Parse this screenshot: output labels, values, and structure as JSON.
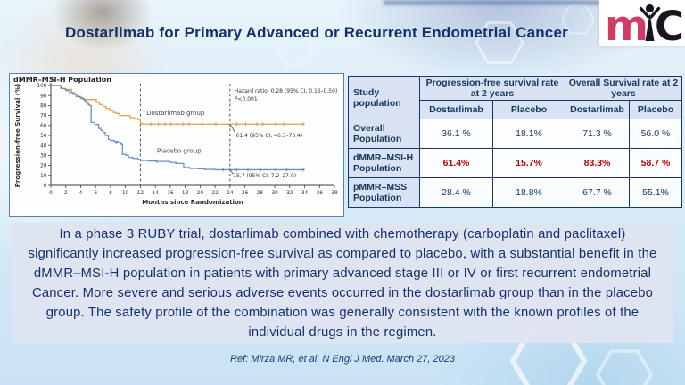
{
  "page": {
    "title": "Dostarlimab for Primary Advanced or Recurrent Endometrial Cancer",
    "reference": "Ref: Mirza MR, et al. N Engl J Med. March 27, 2023"
  },
  "logo": {
    "m": "m",
    "c": "C",
    "m_color": "#d23b63",
    "dark_color": "#16161f"
  },
  "summary": {
    "text": "In a phase 3 RUBY trial, dostarlimab combined with chemotherapy (carboplatin and paclitaxel) significantly increased progression-free survival as compared to placebo, with a substantial benefit in the dMMR–MSI-H population in patients with primary advanced stage III or IV or first recurrent endometrial Cancer. More severe and serious adverse events occurred in the dostarlimab group than in the placebo group. The safety profile of the combination was generally consistent with the known profiles of the individual drugs in the regimen."
  },
  "table": {
    "corner_header": "Study population",
    "group_headers": [
      "Progression-free survival rate at 2 years",
      "Overall Survival rate at 2 years"
    ],
    "sub_headers": [
      "Dostarlimab",
      "Placebo",
      "Dostarlimab",
      "Placebo"
    ],
    "rows": [
      {
        "label": "Overall Population",
        "values": [
          "36.1 %",
          "18.1%",
          "71.3 %",
          "56.0 %"
        ],
        "highlight": false
      },
      {
        "label": "dMMR–MSI-H Population",
        "values": [
          "61.4%",
          "15.7%",
          "83.3%",
          "58.7 %"
        ],
        "highlight": true
      },
      {
        "label": "pMMR–MSS Population",
        "values": [
          "28.4 %",
          "18.8%",
          "67.7 %",
          "55.1%"
        ],
        "highlight": false
      }
    ],
    "highlight_color": "#c00000",
    "header_bg": "#d9e2f3",
    "border_color": "#17375e"
  },
  "chart_data": {
    "type": "line",
    "subtype": "kaplan-meier-step",
    "title": "dMMR–MSI-H Population",
    "xlabel": "Months since Randomization",
    "ylabel": "Progression-free Survival (%)",
    "xlim": [
      0,
      38
    ],
    "xtick_step": 2,
    "ylim": [
      0,
      100
    ],
    "ytick_step": 10,
    "grid": false,
    "reference_lines_x": [
      12,
      24
    ],
    "series": [
      {
        "name": "Dostarlimab group",
        "color": "#e2a047",
        "label_pos": {
          "x": 12.8,
          "y": 70.5
        },
        "rate_at_24mo": 61.4,
        "points": [
          [
            0,
            100
          ],
          [
            1.3,
            100
          ],
          [
            1.3,
            97
          ],
          [
            1.9,
            96
          ],
          [
            2.8,
            93
          ],
          [
            3.2,
            91
          ],
          [
            3.6,
            89
          ],
          [
            4.0,
            87
          ],
          [
            4.3,
            86
          ],
          [
            5.9,
            86
          ],
          [
            6.1,
            83
          ],
          [
            6.5,
            81
          ],
          [
            7.0,
            79
          ],
          [
            7.4,
            77
          ],
          [
            7.9,
            75
          ],
          [
            8.4,
            73
          ],
          [
            8.8,
            72
          ],
          [
            9.2,
            70
          ],
          [
            10.4,
            70
          ],
          [
            10.6,
            68
          ],
          [
            11.2,
            67
          ],
          [
            11.7,
            66
          ],
          [
            12.0,
            62
          ],
          [
            12.3,
            61.4
          ],
          [
            34,
            61.4
          ]
        ],
        "censor_marks": [
          [
            13.4,
            61.4
          ],
          [
            14.4,
            61.4
          ],
          [
            15.3,
            61.4
          ],
          [
            16.1,
            61.4
          ],
          [
            16.9,
            61.4
          ],
          [
            17.7,
            61.4
          ],
          [
            18.5,
            61.4
          ],
          [
            20.3,
            61.4
          ],
          [
            22.1,
            61.4
          ],
          [
            24.9,
            61.4
          ],
          [
            26.1,
            61.4
          ],
          [
            27.6,
            61.4
          ],
          [
            28.4,
            61.4
          ],
          [
            30.1,
            61.4
          ],
          [
            31.2,
            61.4
          ],
          [
            33.8,
            61.4
          ]
        ]
      },
      {
        "name": "Placebo group",
        "color": "#6d8fc4",
        "label_pos": {
          "x": 14.2,
          "y": 32.5
        },
        "rate_at_24mo": 15.7,
        "points": [
          [
            0,
            100
          ],
          [
            1.4,
            100
          ],
          [
            1.4,
            97
          ],
          [
            2.0,
            95
          ],
          [
            2.5,
            93
          ],
          [
            3.0,
            91
          ],
          [
            3.4,
            89
          ],
          [
            3.9,
            88
          ],
          [
            4.2,
            87
          ],
          [
            4.5,
            85
          ],
          [
            4.7,
            83
          ],
          [
            5.0,
            81
          ],
          [
            5.2,
            80
          ],
          [
            5.4,
            63
          ],
          [
            5.9,
            61
          ],
          [
            6.4,
            57
          ],
          [
            6.7,
            55
          ],
          [
            7.0,
            53
          ],
          [
            7.3,
            50
          ],
          [
            7.7,
            46
          ],
          [
            8.0,
            45
          ],
          [
            8.5,
            44
          ],
          [
            9.0,
            43
          ],
          [
            9.4,
            41
          ],
          [
            9.6,
            31
          ],
          [
            10.1,
            30
          ],
          [
            10.4,
            28
          ],
          [
            11.0,
            27
          ],
          [
            11.7,
            26
          ],
          [
            12.0,
            25
          ],
          [
            13.0,
            24.5
          ],
          [
            14.2,
            24
          ],
          [
            16.0,
            23
          ],
          [
            16.9,
            22
          ],
          [
            17.8,
            18
          ],
          [
            18.6,
            17
          ],
          [
            19.8,
            16.5
          ],
          [
            20.6,
            16
          ],
          [
            22.0,
            15.7
          ],
          [
            34,
            15.7
          ]
        ],
        "censor_marks": [
          [
            8.8,
            43
          ],
          [
            14.2,
            24
          ],
          [
            16.9,
            22
          ],
          [
            23.1,
            15.7
          ],
          [
            24.9,
            15.7
          ],
          [
            26.4,
            15.7
          ],
          [
            28.1,
            15.7
          ],
          [
            30.1,
            15.7
          ],
          [
            31.6,
            15.7
          ],
          [
            33.8,
            15.7
          ]
        ]
      }
    ],
    "annotations": [
      {
        "text": "Hazard ratio, 0.28 (95% CI, 0.16–0.50)",
        "x": 24.6,
        "y": 93,
        "size": 6
      },
      {
        "text": "P<0.001",
        "x": 24.6,
        "y": 85,
        "size": 6
      },
      {
        "text": "61.4 (95% CI, 46.3–73.4)",
        "x": 24.8,
        "y": 48,
        "size": 6
      },
      {
        "text": "15.7 (95% CI, 7.2–27.0)",
        "x": 24.4,
        "y": 8,
        "size": 6
      }
    ],
    "pointer_lines": [
      {
        "x1": 24,
        "y1": 61.4,
        "x2": 24.7,
        "y2": 53
      },
      {
        "x1": 24,
        "y1": 15.7,
        "x2": 24.4,
        "y2": 11.5
      }
    ],
    "legend_position": "on-plot"
  }
}
